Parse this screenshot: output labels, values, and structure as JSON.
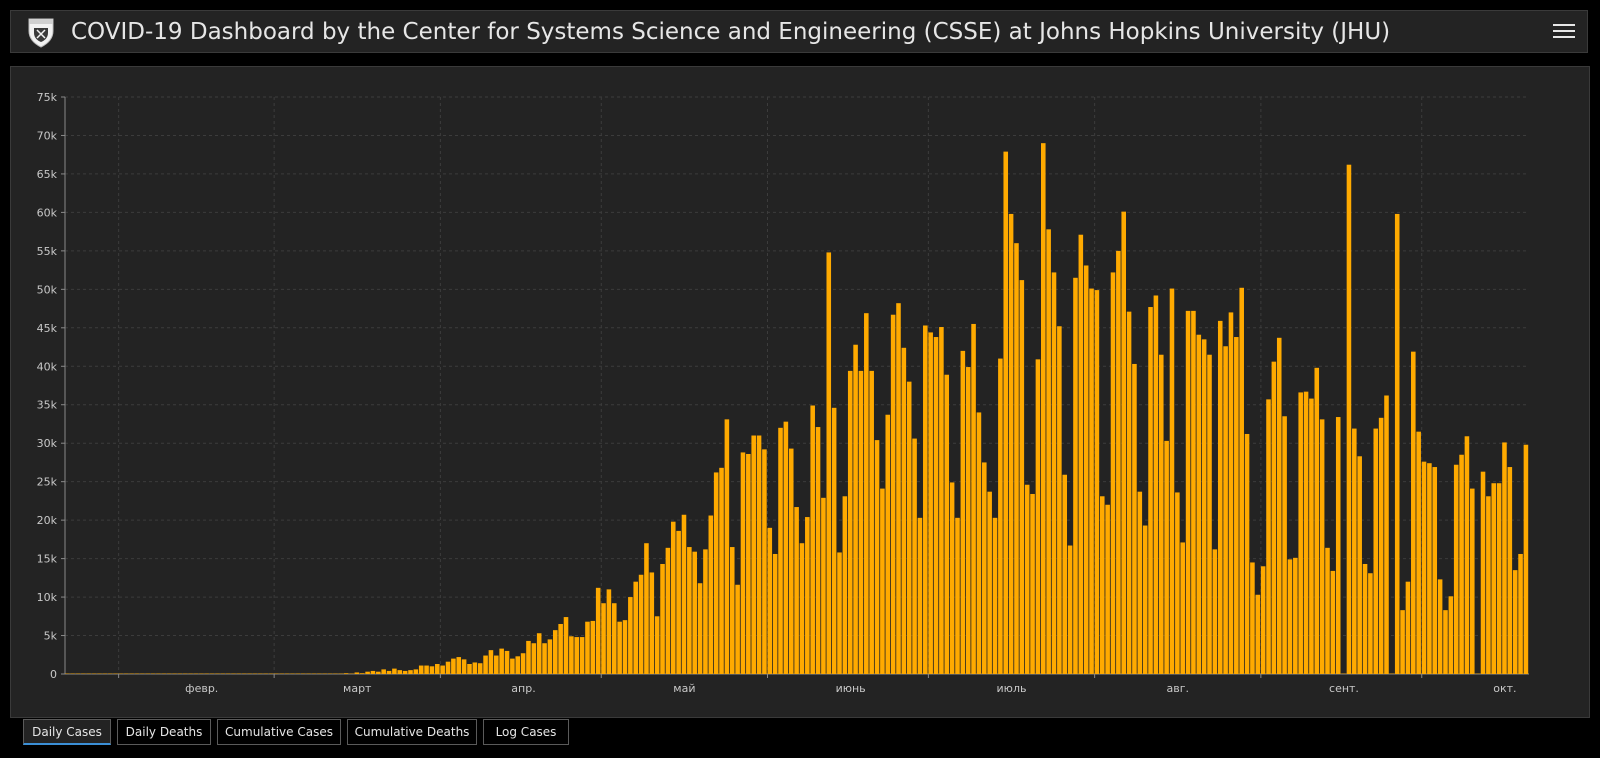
{
  "header": {
    "title": "COVID-19 Dashboard by the Center for Systems Science and Engineering (CSSE) at Johns Hopkins University (JHU)"
  },
  "colors": {
    "bar": "#ffaa00",
    "background": "#232323",
    "grid": "#3c3c3c",
    "text": "#c8c8c8",
    "tab_active": "#3b8fd6"
  },
  "tabs": [
    {
      "label": "Daily Cases",
      "active": true
    },
    {
      "label": "Daily Deaths",
      "active": false
    },
    {
      "label": "Cumulative Cases",
      "active": false
    },
    {
      "label": "Cumulative Deaths",
      "active": false
    },
    {
      "label": "Log Cases",
      "active": false
    }
  ],
  "chart_data": {
    "type": "bar",
    "title": "",
    "xlabel": "",
    "ylabel": "",
    "ylim": [
      0,
      75000
    ],
    "y_ticks": [
      {
        "value": 0,
        "label": "0"
      },
      {
        "value": 5000,
        "label": "5k"
      },
      {
        "value": 10000,
        "label": "10k"
      },
      {
        "value": 15000,
        "label": "15k"
      },
      {
        "value": 20000,
        "label": "20k"
      },
      {
        "value": 25000,
        "label": "25k"
      },
      {
        "value": 30000,
        "label": "30k"
      },
      {
        "value": 35000,
        "label": "35k"
      },
      {
        "value": 40000,
        "label": "40k"
      },
      {
        "value": 45000,
        "label": "45k"
      },
      {
        "value": 50000,
        "label": "50k"
      },
      {
        "value": 55000,
        "label": "55k"
      },
      {
        "value": 60000,
        "label": "60k"
      },
      {
        "value": 65000,
        "label": "65k"
      },
      {
        "value": 70000,
        "label": "70k"
      },
      {
        "value": 75000,
        "label": "75k"
      }
    ],
    "x_start": "2020-01-22",
    "month_ticks": [
      {
        "date": "2020-02-01",
        "label": "февр."
      },
      {
        "date": "2020-03-01",
        "label": "март"
      },
      {
        "date": "2020-04-01",
        "label": "апр."
      },
      {
        "date": "2020-05-01",
        "label": "май"
      },
      {
        "date": "2020-06-01",
        "label": "июнь"
      },
      {
        "date": "2020-07-01",
        "label": "июль"
      },
      {
        "date": "2020-08-01",
        "label": "авг."
      },
      {
        "date": "2020-09-01",
        "label": "сент."
      },
      {
        "date": "2020-10-01",
        "label": "окт."
      }
    ],
    "grid": true,
    "values": [
      0,
      0,
      0,
      0,
      0,
      0,
      0,
      0,
      0,
      0,
      0,
      0,
      0,
      0,
      0,
      0,
      0,
      0,
      0,
      0,
      0,
      0,
      0,
      0,
      0,
      0,
      0,
      0,
      0,
      0,
      0,
      0,
      0,
      0,
      0,
      0,
      0,
      0,
      0,
      0,
      0,
      0,
      0,
      0,
      0,
      0,
      0,
      0,
      0,
      0,
      0,
      0,
      100,
      0,
      200,
      100,
      300,
      400,
      300,
      600,
      400,
      700,
      500,
      400,
      500,
      600,
      1100,
      1100,
      1000,
      1300,
      1100,
      1600,
      2000,
      2200,
      1900,
      1300,
      1500,
      1400,
      2400,
      3100,
      2400,
      3300,
      3000,
      2000,
      2300,
      2700,
      4300,
      4000,
      5300,
      4000,
      4500,
      5700,
      6500,
      7400,
      4900,
      4800,
      4800,
      6800,
      6900,
      11200,
      9200,
      11000,
      9200,
      6800,
      7000,
      10000,
      12000,
      12900,
      17000,
      13200,
      7500,
      14300,
      16400,
      19800,
      18600,
      20700,
      16500,
      15900,
      11800,
      16200,
      20600,
      26200,
      26800,
      33100,
      16500,
      11600,
      28800,
      28600,
      31000,
      31000,
      29200,
      19000,
      15600,
      32000,
      32800,
      29300,
      21700,
      17000,
      20400,
      34900,
      32100,
      22900,
      54800,
      34600,
      15800,
      23100,
      39400,
      42800,
      39400,
      46900,
      39400,
      30400,
      24100,
      33700,
      46700,
      48200,
      42400,
      38000,
      30600,
      20300,
      45300,
      44400,
      43800,
      45100,
      38900,
      24900,
      20300,
      42000,
      39900,
      45500,
      34000,
      27500,
      23700,
      20300,
      41000,
      67900,
      59800,
      56000,
      51200,
      24600,
      23400,
      40900,
      69000,
      57800,
      52200,
      45200,
      25900,
      16700,
      51500,
      57100,
      53100,
      50100,
      49900,
      23100,
      22000,
      52200,
      55000,
      60100,
      47100,
      40300,
      23700,
      19300,
      47700,
      49200,
      41500,
      30300,
      50100,
      23600,
      17100,
      47200,
      47200,
      44100,
      43500,
      41500,
      16200,
      45900,
      42600,
      47000,
      43800,
      50200,
      31200,
      14500,
      10300,
      14000,
      35700,
      40600,
      43700,
      33500,
      14900,
      15100,
      36600,
      36700,
      35800,
      39800,
      33100,
      16400,
      13400,
      33400,
      0,
      66200,
      31900,
      28300,
      14300,
      13100,
      31900,
      33300,
      36200,
      0,
      59800,
      8300,
      12000,
      41900,
      31500,
      27600,
      27400,
      26900,
      12300,
      8300,
      10100,
      27200,
      28500,
      30900,
      24100,
      0,
      26300,
      23100,
      24800,
      24800,
      30100,
      26900,
      13500,
      15600,
      29800
    ]
  }
}
